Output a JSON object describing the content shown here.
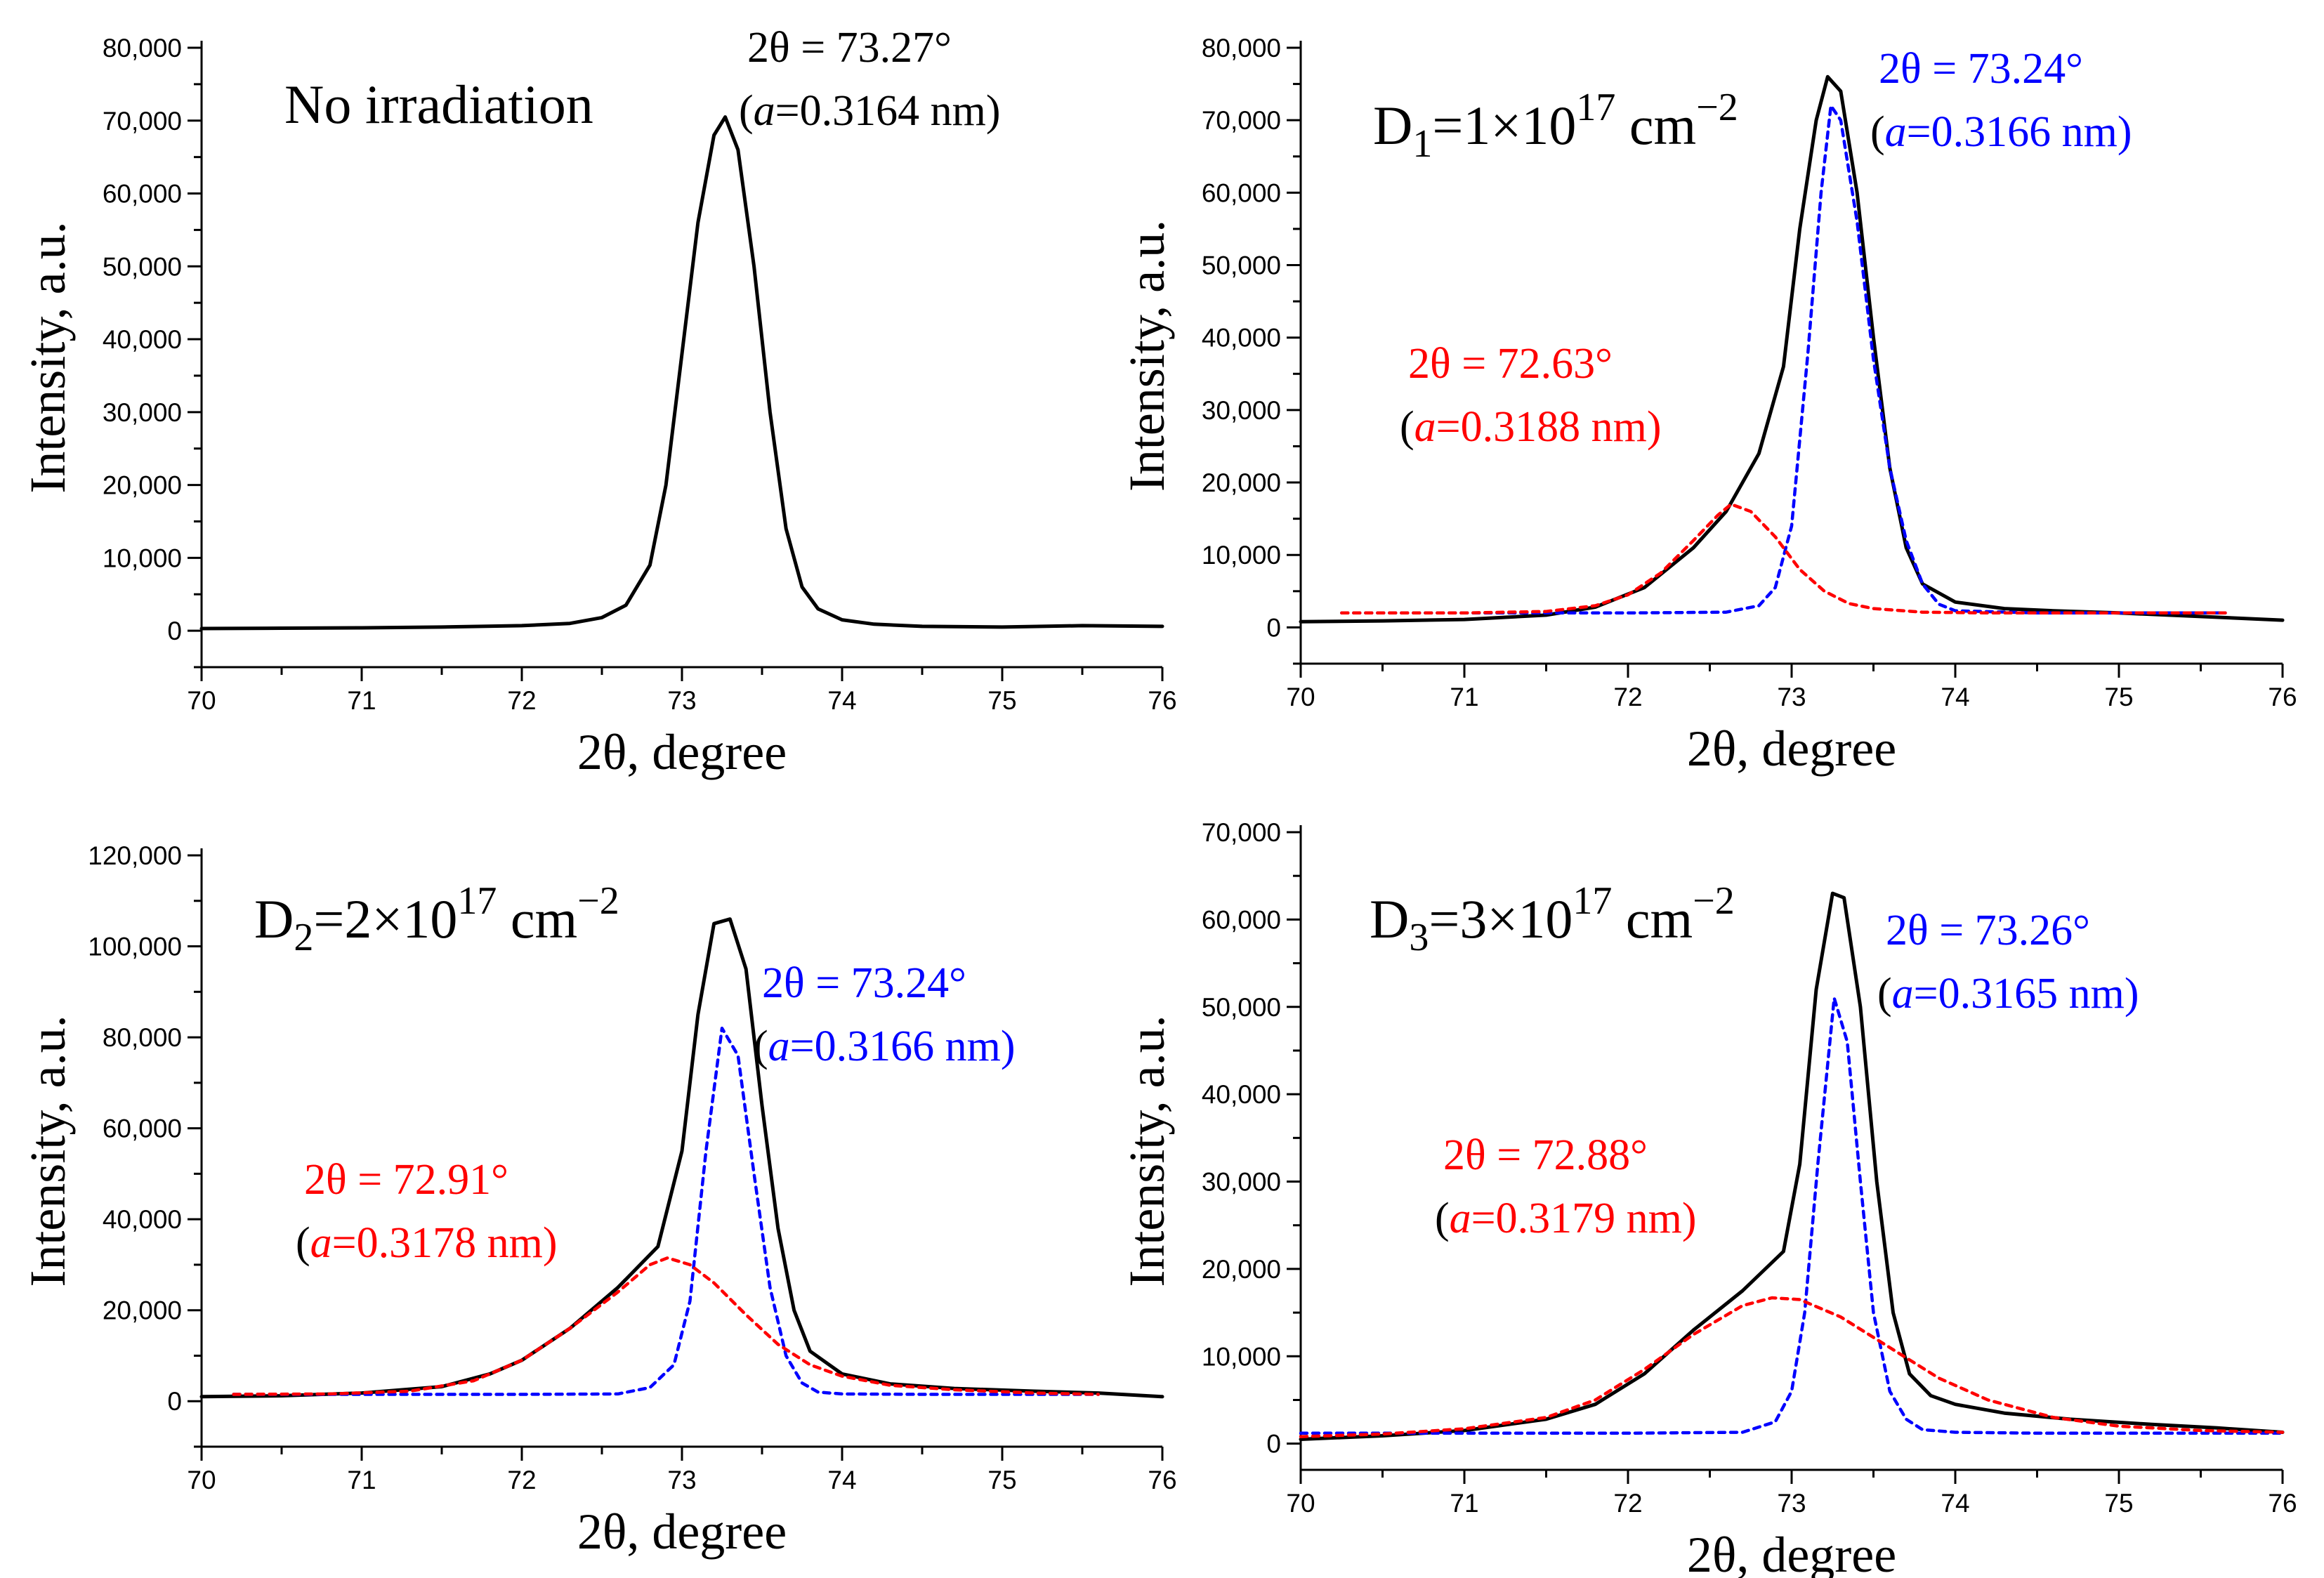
{
  "colors": {
    "measured": "#000000",
    "peak_main": "#0000ff",
    "peak_shifted": "#ff0000"
  },
  "chart_data": [
    {
      "type": "line",
      "panel_label": {
        "text": "No irradiation"
      },
      "xlabel": "2θ, degree",
      "ylabel": "Intensity, a.u.",
      "xlim": [
        70,
        76
      ],
      "ylim": [
        -5000,
        80000
      ],
      "xticks": [
        "70",
        "71",
        "72",
        "73",
        "74",
        "75",
        "76"
      ],
      "yticks": [
        "0",
        "10,000",
        "20,000",
        "30,000",
        "40,000",
        "50,000",
        "60,000",
        "70,000",
        "80,000"
      ],
      "series": [
        {
          "role": "measured",
          "style": "solid",
          "x": [
            70.0,
            70.5,
            71.0,
            71.5,
            72.0,
            72.3,
            72.5,
            72.65,
            72.8,
            72.9,
            73.0,
            73.1,
            73.2,
            73.27,
            73.35,
            73.45,
            73.55,
            73.65,
            73.75,
            73.85,
            74.0,
            74.2,
            74.5,
            75.0,
            75.5,
            76.0
          ],
          "y": [
            300,
            350,
            400,
            500,
            700,
            1000,
            1800,
            3500,
            9000,
            20000,
            38000,
            56000,
            68000,
            70500,
            66000,
            50000,
            30000,
            14000,
            6000,
            3000,
            1500,
            900,
            600,
            500,
            700,
            600
          ]
        }
      ],
      "annotations": [
        {
          "color": "measured",
          "line1": "2θ = 73.27°",
          "line2_prefix": "(",
          "line2_var": "a",
          "line2_rest": "=0.3164 nm)"
        }
      ]
    },
    {
      "type": "line",
      "panel_label": {
        "text": "D",
        "sub": "1",
        "mid": "=1×10",
        "sup1": "17",
        "unit": " cm",
        "sup2": "−2"
      },
      "xlabel": "2θ, degree",
      "ylabel": "Intensity, a.u.",
      "xlim": [
        70,
        76
      ],
      "ylim": [
        -5000,
        80000
      ],
      "xticks": [
        "70",
        "71",
        "72",
        "73",
        "74",
        "75",
        "76"
      ],
      "yticks": [
        "0",
        "10,000",
        "20,000",
        "30,000",
        "40,000",
        "50,000",
        "60,000",
        "70,000",
        "80,000"
      ],
      "series": [
        {
          "role": "measured",
          "style": "solid",
          "x": [
            70.0,
            70.5,
            71.0,
            71.5,
            71.8,
            72.1,
            72.4,
            72.6,
            72.8,
            72.95,
            73.05,
            73.15,
            73.22,
            73.3,
            73.4,
            73.5,
            73.6,
            73.7,
            73.8,
            74.0,
            74.3,
            74.6,
            75.0,
            75.5,
            76.0
          ],
          "y": [
            800,
            900,
            1100,
            1700,
            2800,
            5500,
            11000,
            16000,
            24000,
            36000,
            55000,
            70000,
            76000,
            74000,
            60000,
            40000,
            22000,
            11000,
            6000,
            3500,
            2600,
            2300,
            2000,
            1500,
            1000
          ]
        },
        {
          "role": "peak_main",
          "style": "dotted",
          "x": [
            70.25,
            71.0,
            72.0,
            72.6,
            72.8,
            72.9,
            73.0,
            73.1,
            73.18,
            73.24,
            73.3,
            73.4,
            73.5,
            73.6,
            73.7,
            73.8,
            73.9,
            74.0,
            74.5,
            75.0,
            75.65
          ],
          "y": [
            2000,
            2000,
            2000,
            2100,
            3000,
            5500,
            14000,
            38000,
            60000,
            72000,
            70000,
            56000,
            37000,
            22000,
            12000,
            6000,
            3200,
            2300,
            2000,
            2000,
            2000
          ]
        },
        {
          "role": "peak_shifted",
          "style": "dotted",
          "x": [
            70.25,
            71.0,
            71.5,
            71.8,
            72.0,
            72.2,
            72.4,
            72.55,
            72.63,
            72.75,
            72.9,
            73.05,
            73.2,
            73.35,
            73.5,
            73.8,
            74.2,
            75.0,
            75.65
          ],
          "y": [
            2000,
            2000,
            2200,
            3000,
            4500,
            7500,
            12000,
            15500,
            17000,
            16000,
            12500,
            8000,
            5000,
            3300,
            2600,
            2100,
            2000,
            2000,
            2000
          ]
        }
      ],
      "annotations": [
        {
          "color": "peak_main",
          "line1": "2θ = 73.24°",
          "line2_prefix": "(",
          "line2_var": "a",
          "line2_rest": "=0.3166 nm)"
        },
        {
          "color": "peak_shifted",
          "line1": "2θ = 72.63°",
          "line2_prefix": "(",
          "line2_var": "a",
          "line2_rest": "=0.3188 nm)"
        }
      ]
    },
    {
      "type": "line",
      "panel_label": {
        "text": "D",
        "sub": "2",
        "mid": "=2×10",
        "sup1": "17",
        "unit": " cm",
        "sup2": "−2"
      },
      "xlabel": "2θ, degree",
      "ylabel": "Intensity, a.u.",
      "xlim": [
        70,
        76
      ],
      "ylim": [
        -10000,
        120000
      ],
      "xticks": [
        "70",
        "71",
        "72",
        "73",
        "74",
        "75",
        "76"
      ],
      "yticks": [
        "0",
        "20,000",
        "40,000",
        "60,000",
        "80,000",
        "100,000",
        "120,000"
      ],
      "series": [
        {
          "role": "measured",
          "style": "solid",
          "x": [
            70.0,
            70.5,
            71.0,
            71.5,
            71.8,
            72.0,
            72.3,
            72.6,
            72.85,
            73.0,
            73.1,
            73.2,
            73.3,
            73.4,
            73.5,
            73.6,
            73.7,
            73.8,
            74.0,
            74.3,
            74.7,
            75.2,
            75.6,
            76.0
          ],
          "y": [
            1000,
            1200,
            1800,
            3200,
            6000,
            9000,
            16000,
            25000,
            34000,
            55000,
            85000,
            105000,
            106000,
            95000,
            65000,
            38000,
            20000,
            11000,
            6000,
            3800,
            2800,
            2200,
            1800,
            1000
          ]
        },
        {
          "role": "peak_main",
          "style": "dotted",
          "x": [
            70.2,
            71.0,
            72.0,
            72.6,
            72.8,
            72.95,
            73.05,
            73.15,
            73.25,
            73.35,
            73.45,
            73.55,
            73.65,
            73.75,
            73.85,
            74.0,
            74.5,
            75.0,
            75.6
          ],
          "y": [
            1500,
            1500,
            1500,
            1600,
            3000,
            8000,
            22000,
            55000,
            82000,
            76000,
            50000,
            25000,
            10000,
            4000,
            2000,
            1600,
            1500,
            1500,
            1500
          ]
        },
        {
          "role": "peak_shifted",
          "style": "dotted",
          "x": [
            70.2,
            70.8,
            71.3,
            71.7,
            72.0,
            72.3,
            72.6,
            72.8,
            72.91,
            73.05,
            73.2,
            73.4,
            73.6,
            73.8,
            74.0,
            74.3,
            74.7,
            75.2,
            75.6
          ],
          "y": [
            1500,
            1600,
            2200,
            4500,
            9000,
            16000,
            24000,
            30000,
            31500,
            30000,
            26000,
            19000,
            12500,
            8000,
            5500,
            3500,
            2500,
            1800,
            1500
          ]
        }
      ],
      "annotations": [
        {
          "color": "peak_main",
          "line1": "2θ = 73.24°",
          "line2_prefix": "(",
          "line2_var": "a",
          "line2_rest": "=0.3166 nm)"
        },
        {
          "color": "peak_shifted",
          "line1": "2θ = 72.91°",
          "line2_prefix": "(",
          "line2_var": "a",
          "line2_rest": "=0.3178 nm)"
        }
      ]
    },
    {
      "type": "line",
      "panel_label": {
        "text": "D",
        "sub": "3",
        "mid": "=3×10",
        "sup1": "17",
        "unit": " cm",
        "sup2": "−2"
      },
      "xlabel": "2θ, degree",
      "ylabel": "Intensity, a.u.",
      "xlim": [
        70,
        76
      ],
      "ylim": [
        -3000,
        70000
      ],
      "xticks": [
        "70",
        "71",
        "72",
        "73",
        "74",
        "75",
        "76"
      ],
      "yticks": [
        "0",
        "10,000",
        "20,000",
        "30,000",
        "40,000",
        "50,000",
        "60,000",
        "70,000"
      ],
      "series": [
        {
          "role": "measured",
          "style": "solid",
          "x": [
            70.0,
            70.5,
            71.0,
            71.5,
            71.8,
            72.1,
            72.4,
            72.7,
            72.95,
            73.05,
            73.15,
            73.25,
            73.32,
            73.42,
            73.52,
            73.62,
            73.72,
            73.85,
            74.0,
            74.3,
            74.7,
            75.2,
            75.6,
            76.0
          ],
          "y": [
            500,
            900,
            1500,
            2800,
            4500,
            8000,
            13000,
            17500,
            22000,
            32000,
            52000,
            63000,
            62500,
            50000,
            30000,
            15000,
            8000,
            5500,
            4500,
            3500,
            2800,
            2200,
            1800,
            1300
          ]
        },
        {
          "role": "peak_main",
          "style": "dotted",
          "x": [
            70.0,
            71.0,
            72.0,
            72.7,
            72.9,
            73.0,
            73.08,
            73.16,
            73.26,
            73.34,
            73.42,
            73.5,
            73.6,
            73.7,
            73.8,
            74.0,
            74.5,
            75.0,
            76.0
          ],
          "y": [
            1200,
            1200,
            1200,
            1300,
            2500,
            6000,
            15000,
            32000,
            51000,
            46000,
            30000,
            15000,
            6000,
            2800,
            1600,
            1300,
            1200,
            1200,
            1200
          ]
        },
        {
          "role": "peak_shifted",
          "style": "dotted",
          "x": [
            70.0,
            70.5,
            71.0,
            71.5,
            71.8,
            72.1,
            72.4,
            72.7,
            72.88,
            73.05,
            73.3,
            73.6,
            73.9,
            74.2,
            74.6,
            75.0,
            75.5,
            76.0
          ],
          "y": [
            800,
            1100,
            1700,
            3000,
            5000,
            8500,
            12500,
            15800,
            16700,
            16500,
            14500,
            11000,
            7500,
            5000,
            3000,
            2000,
            1500,
            1300
          ]
        }
      ],
      "annotations": [
        {
          "color": "peak_main",
          "line1": "2θ = 73.26°",
          "line2_prefix": "(",
          "line2_var": "a",
          "line2_rest": "=0.3165 nm)"
        },
        {
          "color": "peak_shifted",
          "line1": "2θ = 72.88°",
          "line2_prefix": "(",
          "line2_var": "a",
          "line2_rest": "=0.3179 nm)"
        }
      ]
    }
  ]
}
